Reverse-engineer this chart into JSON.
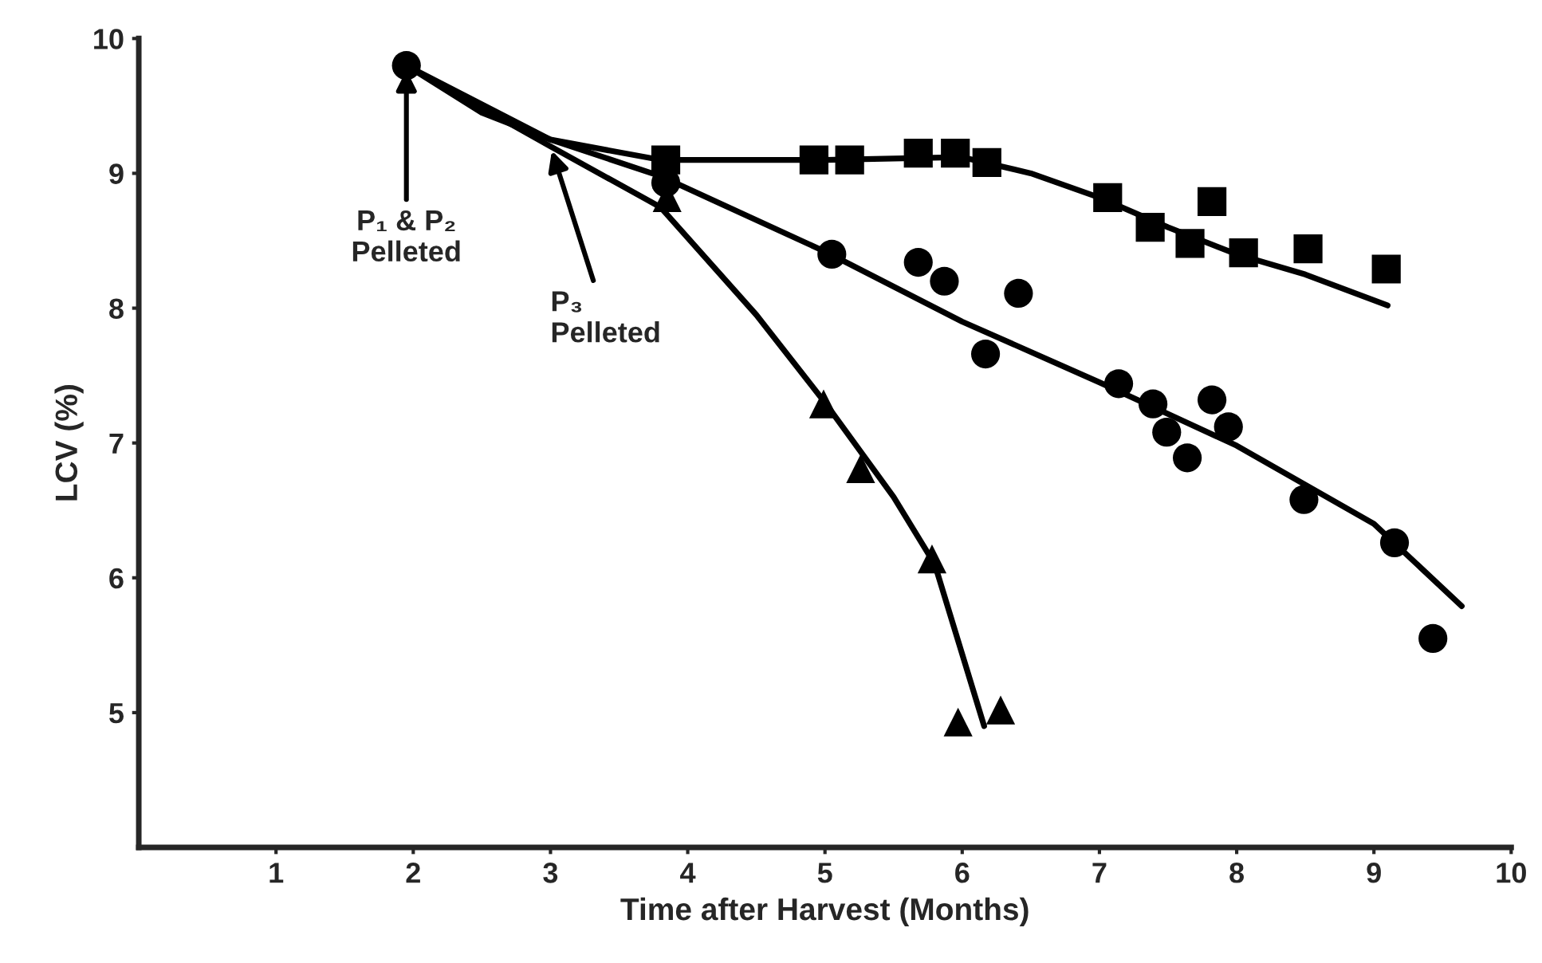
{
  "chart_data": {
    "type": "scatter",
    "xlabel": "Time after Harvest (Months)",
    "ylabel": "LCV (%)",
    "xlim": [
      0,
      10
    ],
    "xticks": [
      1,
      2,
      3,
      4,
      5,
      6,
      7,
      8,
      9,
      10
    ],
    "ylim": [
      4,
      10
    ],
    "yticks": [
      5,
      6,
      7,
      8,
      9,
      10
    ],
    "grid": false,
    "legend": false,
    "series": [
      {
        "marker": "square",
        "color": "#000000",
        "x": [
          3.84,
          4.92,
          5.18,
          5.68,
          5.95,
          6.18,
          7.06,
          7.37,
          7.66,
          7.82,
          8.05,
          8.52,
          9.09
        ],
        "values": [
          9.1,
          9.1,
          9.1,
          9.15,
          9.15,
          9.08,
          8.82,
          8.6,
          8.48,
          8.79,
          8.41,
          8.44,
          8.29
        ]
      },
      {
        "marker": "circle",
        "color": "#000000",
        "x": [
          1.95,
          3.84,
          5.05,
          5.68,
          5.87,
          6.41,
          6.17,
          7.14,
          7.39,
          7.49,
          7.64,
          7.82,
          7.94,
          8.49,
          9.15,
          9.43
        ],
        "values": [
          9.8,
          8.93,
          8.4,
          8.34,
          8.2,
          8.11,
          7.66,
          7.44,
          7.29,
          7.08,
          6.89,
          7.32,
          7.12,
          6.58,
          6.26,
          5.55
        ]
      },
      {
        "marker": "triangle",
        "color": "#000000",
        "x": [
          3.85,
          4.99,
          5.26,
          5.78,
          5.97,
          6.28
        ],
        "values": [
          8.82,
          7.29,
          6.81,
          6.14,
          4.93,
          5.02
        ]
      },
      {
        "type": "line",
        "marker": "none",
        "line_style": "solid",
        "color": "#000000",
        "x": [
          1.95,
          2.5,
          3,
          3.8,
          5,
          6,
          6.5,
          7,
          7.5,
          8,
          8.5,
          9.1
        ],
        "values": [
          9.8,
          9.45,
          9.25,
          9.1,
          9.1,
          9.12,
          9.0,
          8.82,
          8.6,
          8.4,
          8.25,
          8.02
        ]
      },
      {
        "type": "line",
        "marker": "none",
        "line_style": "solid",
        "color": "#000000",
        "x": [
          1.95,
          3,
          3.8,
          5,
          6,
          7,
          8,
          9,
          9.64
        ],
        "values": [
          9.8,
          9.25,
          8.98,
          8.42,
          7.9,
          7.45,
          6.98,
          6.4,
          5.79
        ]
      },
      {
        "type": "line",
        "marker": "none",
        "line_style": "solid",
        "color": "#000000",
        "x": [
          1.95,
          3,
          3.8,
          4.5,
          5,
          5.5,
          5.8,
          6.16
        ],
        "values": [
          9.8,
          9.2,
          8.75,
          7.95,
          7.3,
          6.6,
          6.1,
          4.9
        ]
      }
    ],
    "annotations": [
      {
        "text": "P₁ & P₂\nPelleted",
        "x": 1.95,
        "y": 9.8
      },
      {
        "text": "P₃\nPelleted",
        "x": 3.0,
        "y": 9.2
      }
    ]
  }
}
